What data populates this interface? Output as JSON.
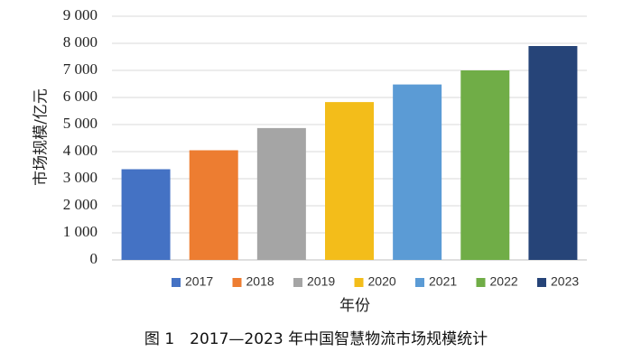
{
  "chart_data": {
    "type": "bar",
    "categories": [
      "2017",
      "2018",
      "2019",
      "2020",
      "2021",
      "2022",
      "2023"
    ],
    "values": [
      3350,
      4050,
      4870,
      5830,
      6480,
      7000,
      7900
    ],
    "colors": [
      "#4472c4",
      "#ed7d31",
      "#a5a5a5",
      "#f3bd1a",
      "#5b9bd5",
      "#70ad47",
      "#264478"
    ],
    "ylim": [
      0,
      9000
    ],
    "yticks": [
      0,
      1000,
      2000,
      3000,
      4000,
      5000,
      6000,
      7000,
      8000,
      9000
    ],
    "ytick_labels": [
      "0",
      "1 000",
      "2 000",
      "3 000",
      "4 000",
      "5 000",
      "6 000",
      "7 000",
      "8 000",
      "9 000"
    ],
    "ylabel": "市场规模/亿元",
    "xlabel": "年份",
    "legend": [
      "2017",
      "2018",
      "2019",
      "2020",
      "2021",
      "2022",
      "2023"
    ],
    "legend_position": "bottom",
    "grid": true,
    "caption": "图 1　2017—2023 年中国智慧物流市场规模统计"
  }
}
